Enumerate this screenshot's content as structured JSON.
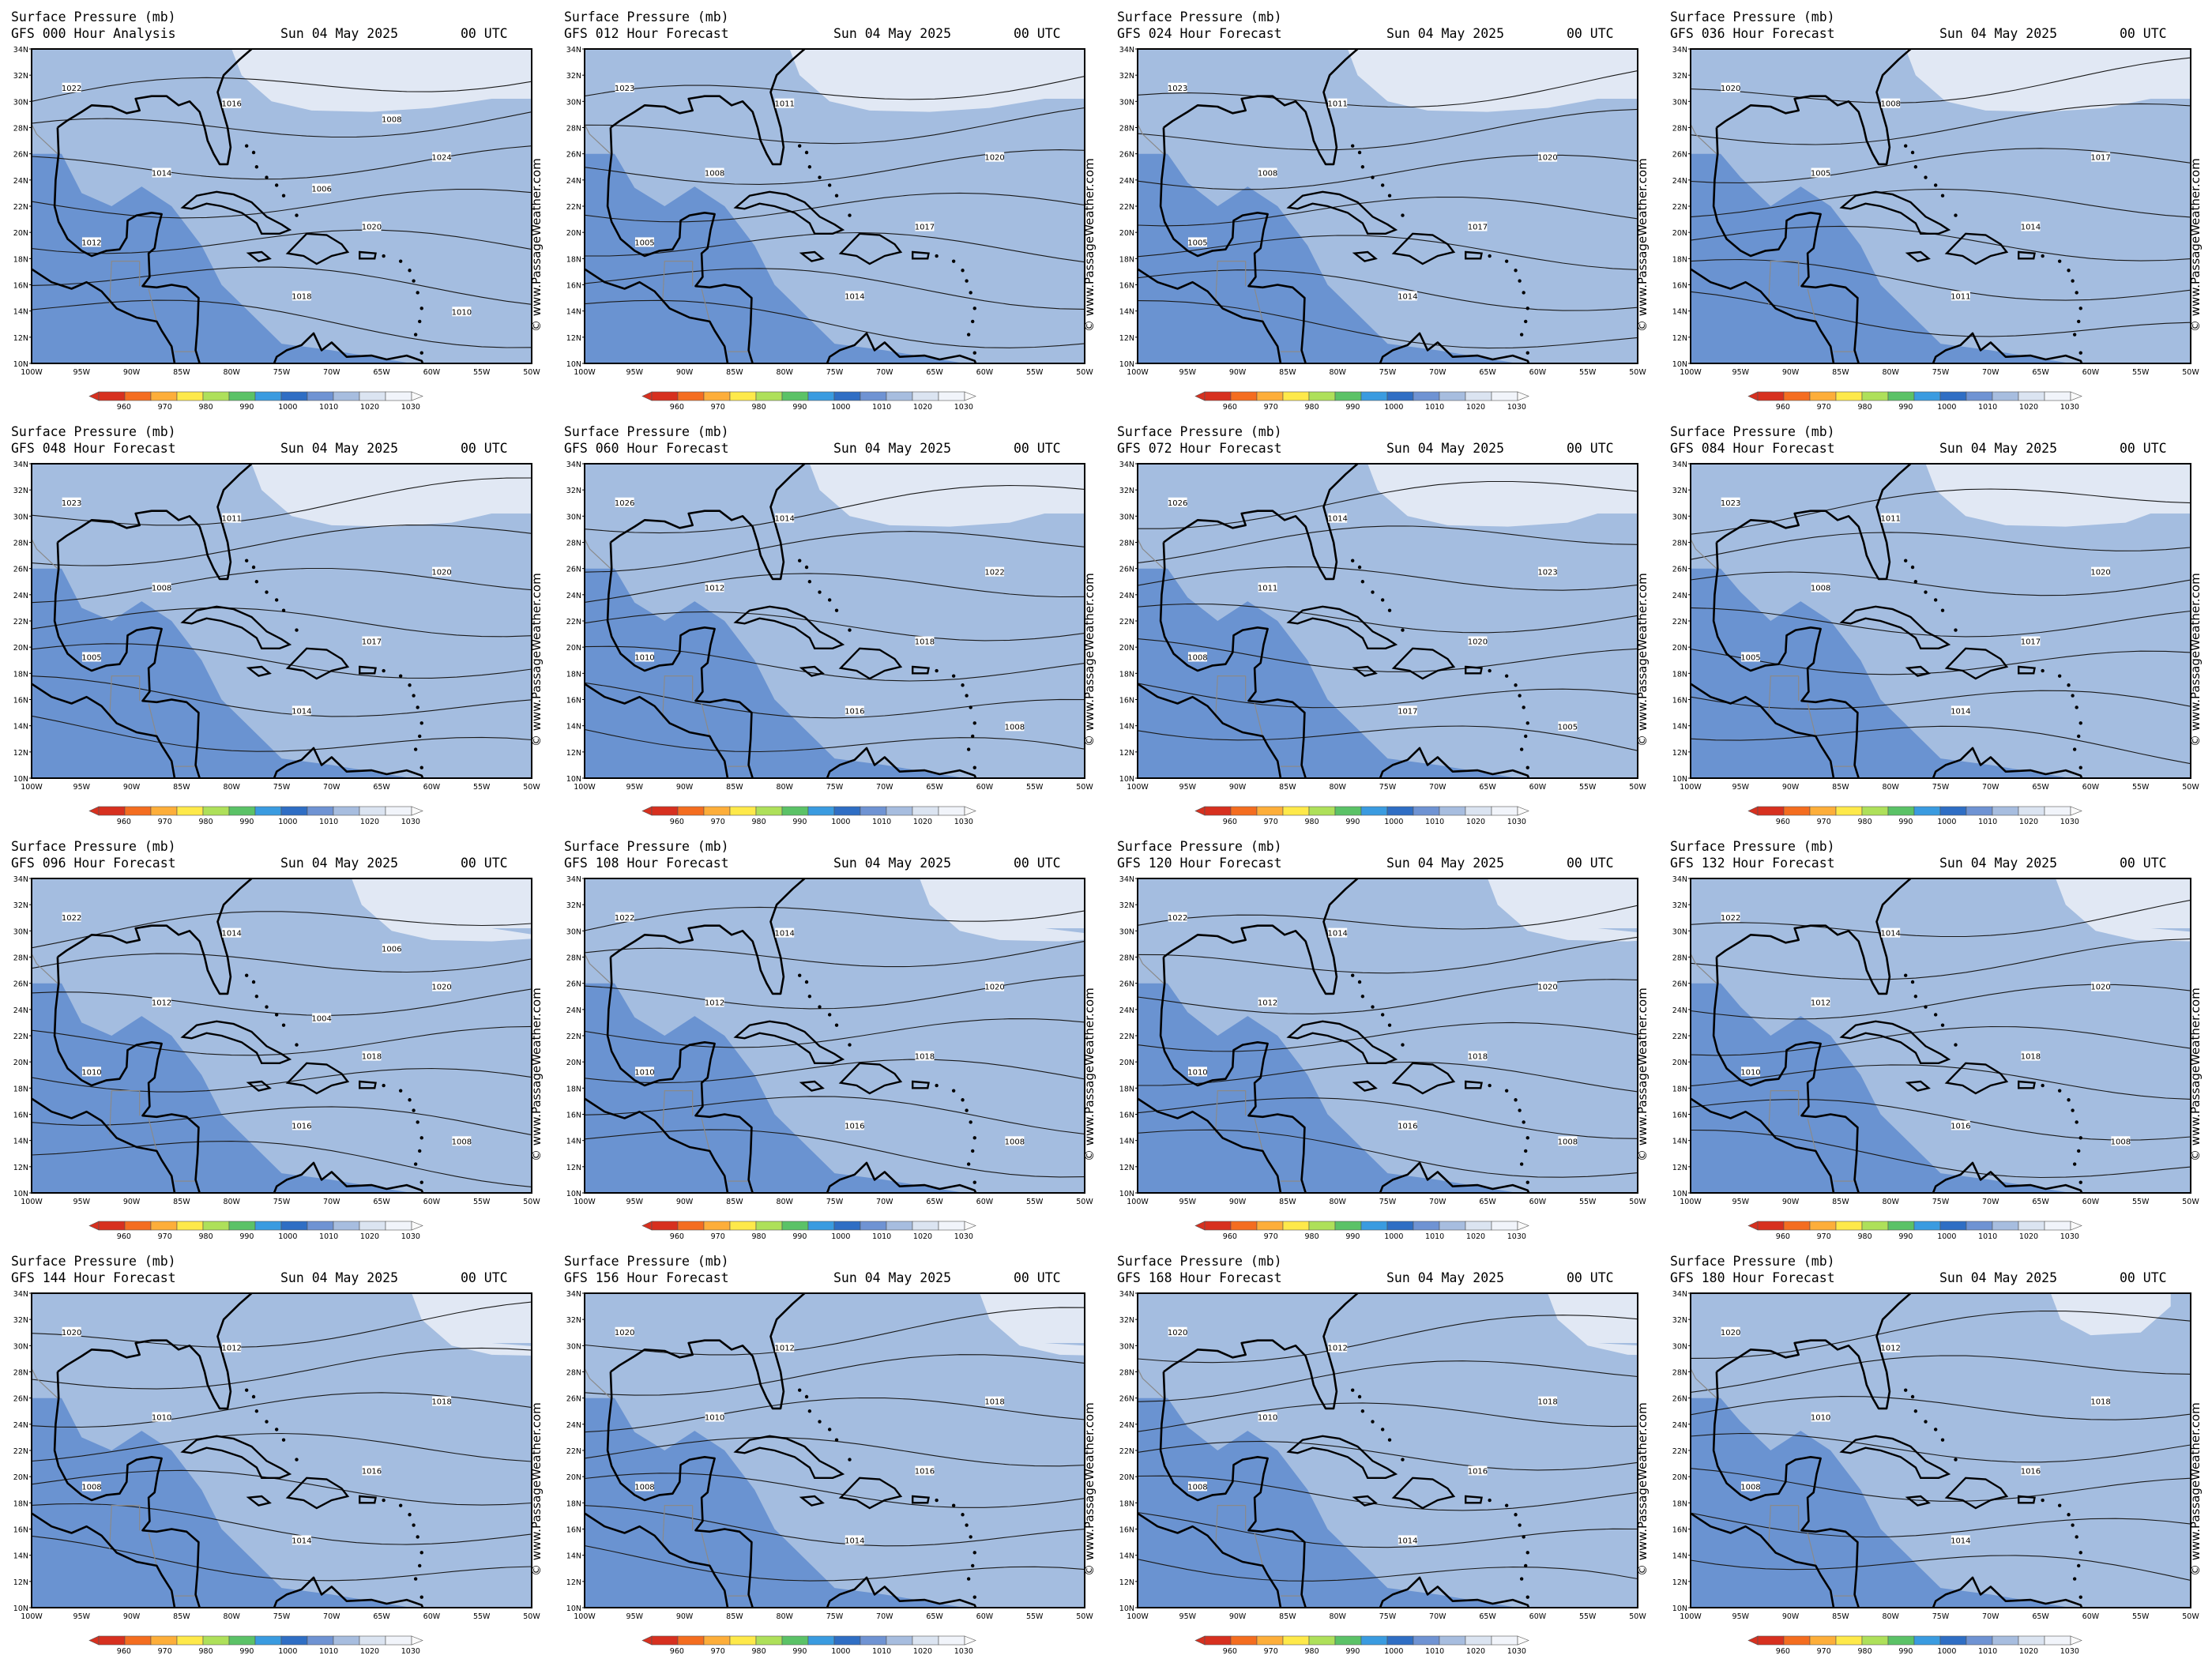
{
  "common": {
    "title": "Surface Pressure (mb)",
    "date": "Sun 04 May 2025",
    "utc": "00 UTC",
    "credit": "© www.PassageWeather.com",
    "lat_labels": [
      "34N",
      "32N",
      "30N",
      "28N",
      "26N",
      "24N",
      "22N",
      "20N",
      "18N",
      "16N",
      "14N",
      "12N",
      "10N"
    ],
    "lon_labels": [
      "100W",
      "95W",
      "90W",
      "85W",
      "80W",
      "75W",
      "70W",
      "65W",
      "60W",
      "55W",
      "50W"
    ],
    "scale_labels": [
      "960",
      "970",
      "980",
      "990",
      "1000",
      "1010",
      "1020",
      "1030"
    ],
    "scale_colors": [
      "#d7301f",
      "#f46d20",
      "#fdae3a",
      "#fee94a",
      "#aee05a",
      "#5bc267",
      "#3a9be0",
      "#2f6ec4",
      "#6f93d3",
      "#a7bddf",
      "#dbe4f1",
      "#f1f4fa"
    ],
    "fill_colors": {
      "low": "#6a93d1",
      "mid": "#a4bde0",
      "high": "#e1e8f4"
    },
    "coast_color": "#000000",
    "border_color": "#8a8a8a"
  },
  "panels": [
    {
      "run": "GFS 000 Hour Analysis",
      "isobar_labels": [
        "1022",
        "1024",
        "1020",
        "1018",
        "1016",
        "1014",
        "1012",
        "1010",
        "1008",
        "1006"
      ]
    },
    {
      "run": "GFS 012 Hour Forecast",
      "isobar_labels": [
        "1023",
        "1020",
        "1017",
        "1014",
        "1011",
        "1008",
        "1005"
      ]
    },
    {
      "run": "GFS 024 Hour Forecast",
      "isobar_labels": [
        "1023",
        "1020",
        "1017",
        "1014",
        "1011",
        "1008",
        "1005"
      ]
    },
    {
      "run": "GFS 036 Hour Forecast",
      "isobar_labels": [
        "1020",
        "1017",
        "1014",
        "1011",
        "1008",
        "1005"
      ]
    },
    {
      "run": "GFS 048 Hour Forecast",
      "isobar_labels": [
        "1023",
        "1020",
        "1017",
        "1014",
        "1011",
        "1008",
        "1005"
      ]
    },
    {
      "run": "GFS 060 Hour Forecast",
      "isobar_labels": [
        "1026",
        "1022",
        "1018",
        "1016",
        "1014",
        "1012",
        "1010",
        "1008"
      ]
    },
    {
      "run": "GFS 072 Hour Forecast",
      "isobar_labels": [
        "1026",
        "1023",
        "1020",
        "1017",
        "1014",
        "1011",
        "1008",
        "1005"
      ]
    },
    {
      "run": "GFS 084 Hour Forecast",
      "isobar_labels": [
        "1023",
        "1020",
        "1017",
        "1014",
        "1011",
        "1008",
        "1005"
      ]
    },
    {
      "run": "GFS 096 Hour Forecast",
      "isobar_labels": [
        "1022",
        "1020",
        "1018",
        "1016",
        "1014",
        "1012",
        "1010",
        "1008",
        "1006",
        "1004"
      ]
    },
    {
      "run": "GFS 108 Hour Forecast",
      "isobar_labels": [
        "1022",
        "1020",
        "1018",
        "1016",
        "1014",
        "1012",
        "1010",
        "1008"
      ]
    },
    {
      "run": "GFS 120 Hour Forecast",
      "isobar_labels": [
        "1022",
        "1020",
        "1018",
        "1016",
        "1014",
        "1012",
        "1010",
        "1008"
      ]
    },
    {
      "run": "GFS 132 Hour Forecast",
      "isobar_labels": [
        "1022",
        "1020",
        "1018",
        "1016",
        "1014",
        "1012",
        "1010",
        "1008"
      ]
    },
    {
      "run": "GFS 144 Hour Forecast",
      "isobar_labels": [
        "1020",
        "1018",
        "1016",
        "1014",
        "1012",
        "1010",
        "1008"
      ]
    },
    {
      "run": "GFS 156 Hour Forecast",
      "isobar_labels": [
        "1020",
        "1018",
        "1016",
        "1014",
        "1012",
        "1010",
        "1008"
      ]
    },
    {
      "run": "GFS 168 Hour Forecast",
      "isobar_labels": [
        "1020",
        "1018",
        "1016",
        "1014",
        "1012",
        "1010",
        "1008"
      ]
    },
    {
      "run": "GFS 180 Hour Forecast",
      "isobar_labels": [
        "1020",
        "1018",
        "1016",
        "1014",
        "1012",
        "1010",
        "1008"
      ]
    }
  ]
}
